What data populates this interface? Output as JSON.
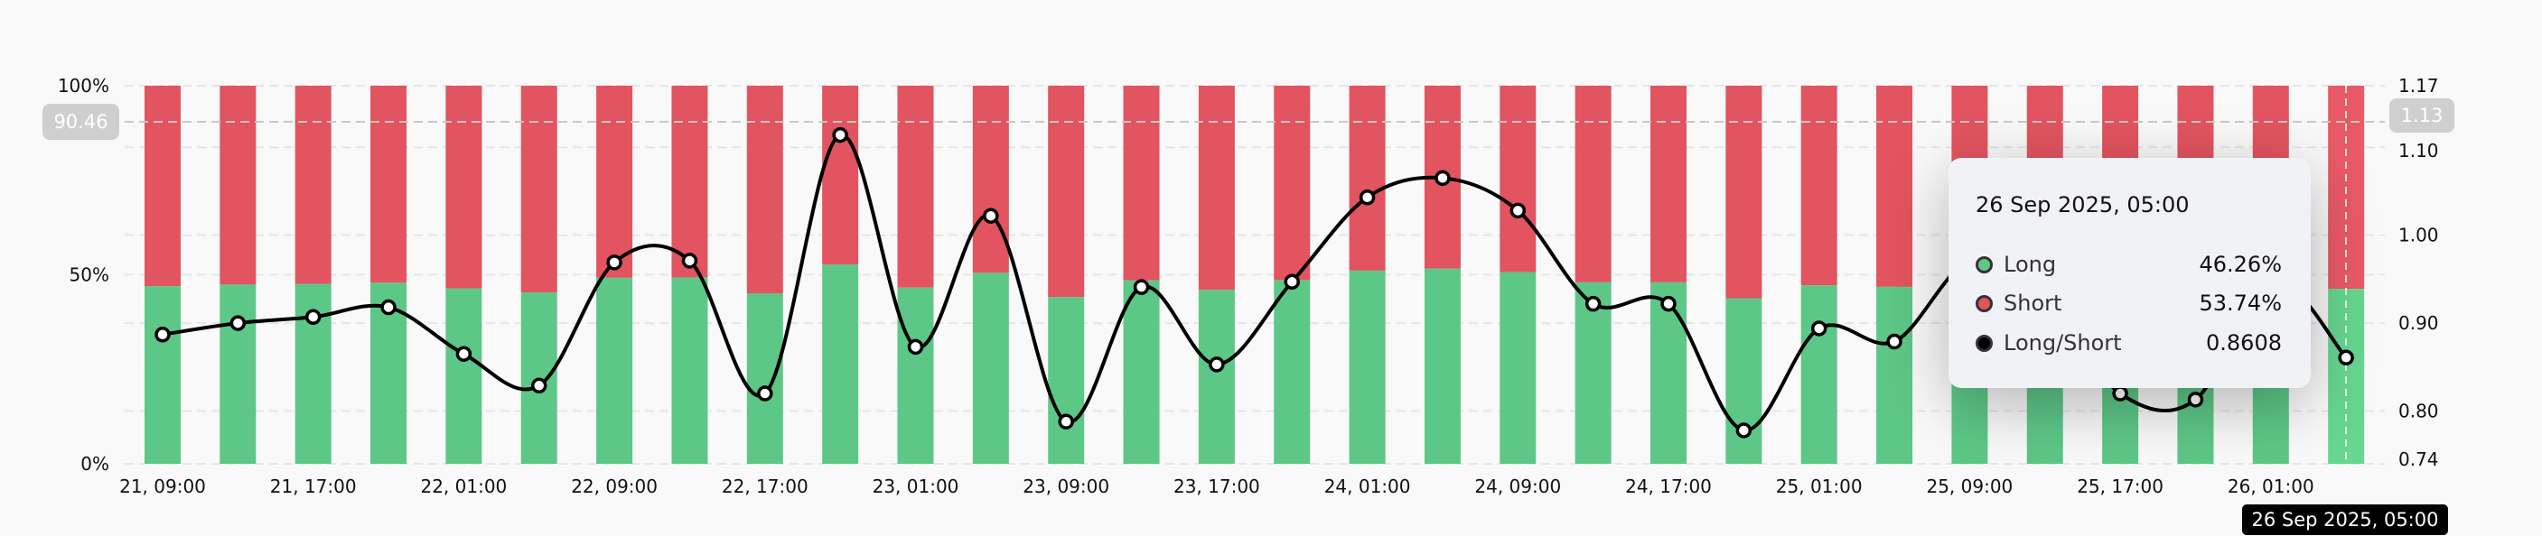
{
  "chart_data": {
    "type": "bar+line",
    "x_tick_labels": [
      "21, 09:00",
      "21, 17:00",
      "22, 01:00",
      "22, 09:00",
      "22, 17:00",
      "23, 01:00",
      "23, 09:00",
      "23, 17:00",
      "24, 01:00",
      "24, 09:00",
      "24, 17:00",
      "25, 01:00",
      "25, 09:00",
      "25, 17:00",
      "26, 01:00"
    ],
    "bar_count": 30,
    "series": [
      {
        "name": "Long",
        "kind": "stacked-bar",
        "axis": "left",
        "color": "#5dc787",
        "values": [
          47.0,
          47.4,
          47.6,
          47.9,
          46.4,
          45.3,
          49.2,
          49.3,
          45.1,
          52.7,
          46.6,
          50.5,
          44.1,
          48.5,
          46.0,
          48.6,
          51.1,
          51.6,
          50.7,
          48.0,
          48.0,
          43.8,
          47.2,
          46.8,
          49.2,
          48.2,
          45.1,
          44.8,
          48.7,
          46.26
        ]
      },
      {
        "name": "Short",
        "kind": "stacked-bar",
        "axis": "left",
        "color": "#e2545f",
        "values": [
          53.0,
          52.6,
          52.4,
          52.1,
          53.6,
          54.7,
          50.8,
          50.7,
          54.9,
          47.3,
          53.4,
          49.5,
          55.9,
          51.5,
          54.0,
          51.4,
          48.9,
          48.4,
          49.3,
          52.0,
          52.0,
          56.2,
          52.8,
          53.2,
          50.8,
          51.8,
          54.9,
          55.2,
          51.3,
          53.74
        ]
      },
      {
        "name": "Long/Short",
        "kind": "line",
        "axis": "right",
        "color": "#000000",
        "values": [
          0.887,
          0.9,
          0.907,
          0.918,
          0.865,
          0.829,
          0.969,
          0.971,
          0.82,
          1.114,
          0.873,
          1.022,
          0.788,
          0.941,
          0.853,
          0.947,
          1.043,
          1.065,
          1.028,
          0.922,
          0.922,
          0.778,
          0.894,
          0.879,
          0.97,
          0.93,
          0.82,
          0.813,
          0.95,
          0.8608
        ]
      }
    ],
    "left_axis": {
      "ticks": [
        "100%",
        "50%",
        "0%"
      ],
      "range": [
        0,
        100
      ]
    },
    "right_axis": {
      "ticks": [
        "1.17",
        "1.10",
        "1.00",
        "0.90",
        "0.80",
        "0.74"
      ],
      "range": [
        0.74,
        1.17
      ]
    },
    "grid": true
  },
  "crosshair": {
    "left_value": "90.46",
    "right_value": "1.13",
    "time_label": "26 Sep 2025, 05:00"
  },
  "tooltip": {
    "title": "26 Sep 2025, 05:00",
    "rows": [
      {
        "label": "Long",
        "value": "46.26%",
        "color": "#5dc787"
      },
      {
        "label": "Short",
        "value": "53.74%",
        "color": "#e2545f"
      },
      {
        "label": "Long/Short",
        "value": "0.8608",
        "color": "#000000"
      }
    ]
  }
}
